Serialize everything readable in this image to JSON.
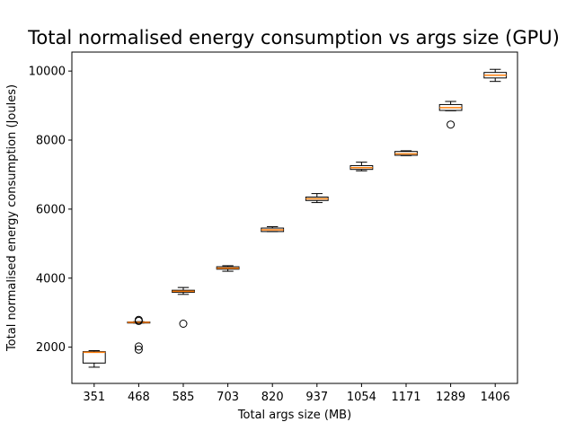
{
  "chart_data": {
    "type": "boxplot",
    "title": "Total normalised energy consumption vs args size (GPU)",
    "xlabel": "Total args size (MB)",
    "ylabel": "Total normalised energy consumption (Joules)",
    "ylim": [
      950,
      10550
    ],
    "yticks": [
      2000,
      4000,
      6000,
      8000,
      10000
    ],
    "grid": false,
    "colors": {
      "median": "#ff7f0e",
      "box": "#000000"
    },
    "categories": [
      "351",
      "468",
      "585",
      "703",
      "820",
      "937",
      "1054",
      "1171",
      "1289",
      "1406"
    ],
    "boxes": [
      {
        "whislo": 1420,
        "q1": 1540,
        "med": 1850,
        "q3": 1870,
        "whishi": 1900,
        "fliers": []
      },
      {
        "whislo": 2700,
        "q1": 2700,
        "med": 2720,
        "q3": 2730,
        "whishi": 2740,
        "fliers": [
          2790,
          2760,
          2020,
          1930
        ]
      },
      {
        "whislo": 3530,
        "q1": 3590,
        "med": 3620,
        "q3": 3650,
        "whishi": 3730,
        "fliers": [
          2680
        ]
      },
      {
        "whislo": 4200,
        "q1": 4260,
        "med": 4290,
        "q3": 4330,
        "whishi": 4360,
        "fliers": []
      },
      {
        "whislo": 5350,
        "q1": 5350,
        "med": 5400,
        "q3": 5450,
        "whishi": 5490,
        "fliers": []
      },
      {
        "whislo": 6190,
        "q1": 6250,
        "med": 6300,
        "q3": 6350,
        "whishi": 6450,
        "fliers": []
      },
      {
        "whislo": 7110,
        "q1": 7150,
        "med": 7200,
        "q3": 7260,
        "whishi": 7360,
        "fliers": []
      },
      {
        "whislo": 7550,
        "q1": 7560,
        "med": 7600,
        "q3": 7670,
        "whishi": 7690,
        "fliers": []
      },
      {
        "whislo": 8850,
        "q1": 8860,
        "med": 8940,
        "q3": 9030,
        "whishi": 9120,
        "fliers": [
          8450
        ]
      },
      {
        "whislo": 9700,
        "q1": 9800,
        "med": 9880,
        "q3": 9960,
        "whishi": 10050,
        "fliers": []
      }
    ]
  }
}
